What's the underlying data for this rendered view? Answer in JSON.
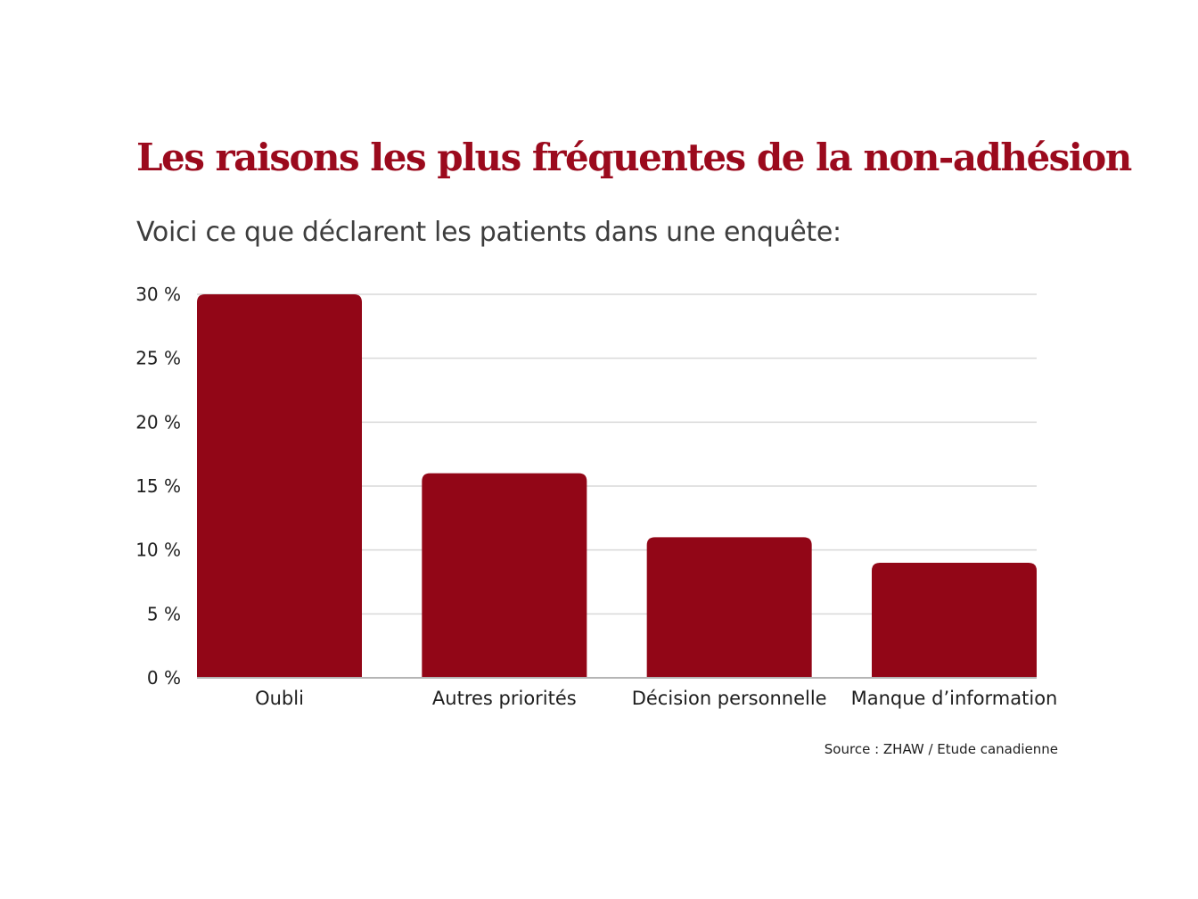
{
  "title": "Les raisons les plus fréquentes de la non-adhésion",
  "subtitle": "Voici ce que déclarent les patients dans une enquête:",
  "source": "Source : ZHAW / Etude canadienne",
  "colors": {
    "title": "#9b0a1d",
    "bar": "#920617",
    "text": "#3d3d3d",
    "grid": "#d9d9d9",
    "axis": "#b5b5b5",
    "tick_text": "#1e1e1e"
  },
  "chart_data": {
    "type": "bar",
    "categories": [
      "Oubli",
      "Autres priorités",
      "Décision personnelle",
      "Manque d’information"
    ],
    "values": [
      30,
      16,
      11,
      9
    ],
    "yticks": [
      "0 %",
      "5 %",
      "10 %",
      "15 %",
      "20 %",
      "25 %",
      "30 %"
    ],
    "ylim": [
      0,
      30
    ],
    "grid": true,
    "legend": false
  }
}
